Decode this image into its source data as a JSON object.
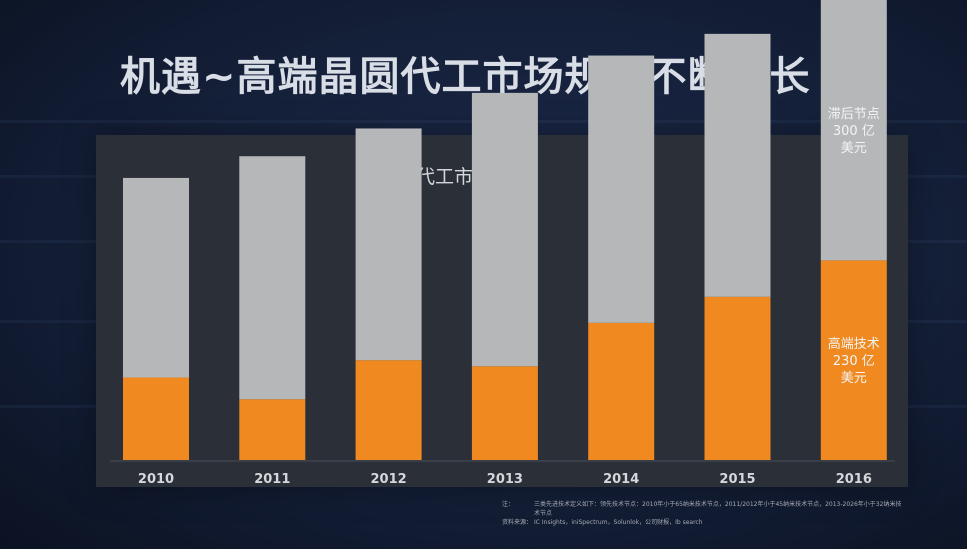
{
  "title": "机遇~高端晶圆代工市场规模不断增长",
  "notes": [
    {
      "label": "注：",
      "text": "三类先进技术定义如下：领先技术节点：2010年小于65纳米技术节点，2011/2012年小于45纳米技术节点，2013-2026年小于32纳米技术节点"
    },
    {
      "label": "资料来源：",
      "text": "IC Insights，iniSpectrum，Solunlok，公司财报，Ib search"
    }
  ],
  "colors": {
    "gray": "#b6b7b9",
    "orange": "#f08a20",
    "label_light": "#f4f4f4",
    "year_label": "#d5d7db"
  },
  "chart_data": {
    "type": "bar",
    "stacked": true,
    "title": "晶圆代工市场规模",
    "categories": [
      "2010",
      "2011",
      "2012",
      "2013",
      "2014",
      "2015",
      "2016"
    ],
    "ylim": [
      0,
      530
    ],
    "series": [
      {
        "name": "高端技术",
        "color": "#f08a20",
        "values": [
          95,
          70,
          115,
          108,
          158,
          188,
          230
        ]
      },
      {
        "name": "滞后节点",
        "color": "#b6b7b9",
        "values": [
          230,
          280,
          267,
          315,
          308,
          303,
          300
        ]
      }
    ],
    "annotations": [
      {
        "category": "2016",
        "series": "滞后节点",
        "lines": [
          "滞后节点",
          "300 亿",
          "美元"
        ]
      },
      {
        "category": "2016",
        "series": "高端技术",
        "lines": [
          "高端技术",
          "230 亿",
          "美元"
        ]
      }
    ],
    "grid": false,
    "legend": "none"
  }
}
